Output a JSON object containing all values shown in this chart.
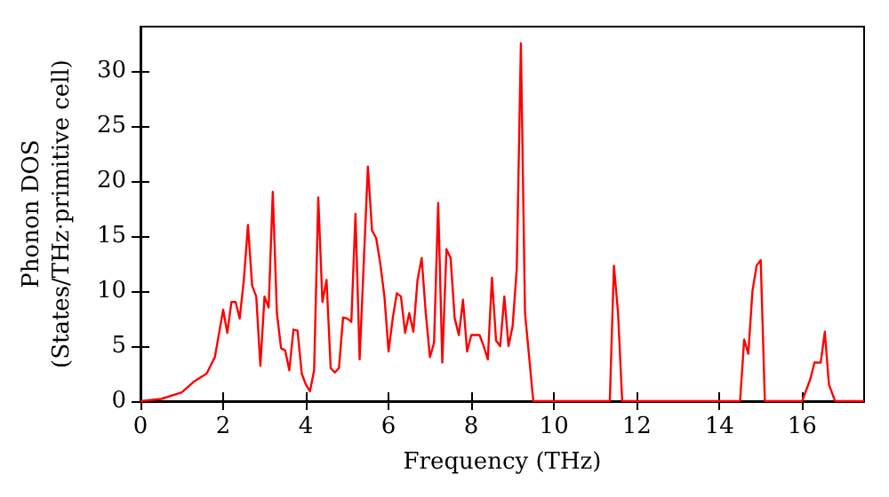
{
  "chart_data": {
    "type": "line",
    "xlabel": "Frequency (THz)",
    "ylabel": "Phonon DOS\n(States/THz·primitive cell)",
    "xlim": [
      0,
      17.5
    ],
    "xticks": [
      0,
      2,
      4,
      6,
      8,
      10,
      12,
      14,
      16
    ],
    "ylim": [
      0,
      34
    ],
    "yticks": [
      0,
      5,
      10,
      15,
      20,
      25,
      30
    ],
    "grid": false,
    "marker": "none",
    "line_style": "solid",
    "series": [
      {
        "color": "#ff0000",
        "x": [
          0,
          0.5,
          1,
          1.3,
          1.6,
          1.8,
          2.0,
          2.1,
          2.2,
          2.3,
          2.4,
          2.5,
          2.6,
          2.7,
          2.8,
          2.9,
          3.0,
          3.1,
          3.2,
          3.3,
          3.4,
          3.5,
          3.6,
          3.7,
          3.8,
          3.9,
          4.0,
          4.1,
          4.2,
          4.3,
          4.4,
          4.5,
          4.6,
          4.7,
          4.8,
          4.9,
          5.0,
          5.1,
          5.2,
          5.3,
          5.5,
          5.6,
          5.7,
          5.8,
          5.9,
          6.0,
          6.1,
          6.2,
          6.3,
          6.4,
          6.5,
          6.6,
          6.7,
          6.8,
          6.9,
          7.0,
          7.1,
          7.2,
          7.3,
          7.4,
          7.5,
          7.6,
          7.7,
          7.8,
          7.9,
          8.0,
          8.1,
          8.2,
          8.3,
          8.4,
          8.5,
          8.6,
          8.7,
          8.8,
          8.9,
          9.0,
          9.1,
          9.2,
          9.3,
          9.4,
          9.5,
          11.35,
          11.45,
          11.55,
          11.65,
          14.5,
          14.6,
          14.7,
          14.8,
          14.9,
          15.0,
          15.1,
          16.0,
          16.2,
          16.3,
          16.45,
          16.55,
          16.65,
          16.8,
          17.5
        ],
        "values": [
          0,
          0.2,
          0.8,
          1.8,
          2.5,
          4,
          8.3,
          6.2,
          9,
          9,
          7.5,
          11,
          16,
          10.5,
          9.5,
          3.2,
          9.5,
          8.5,
          19,
          8,
          4.8,
          4.6,
          2.8,
          6.5,
          6.4,
          2.5,
          1.5,
          0.9,
          2.8,
          18.5,
          9,
          11,
          3,
          2.6,
          3,
          7.6,
          7.5,
          7.2,
          17,
          3.8,
          21.3,
          15.5,
          14.8,
          12.5,
          9.5,
          4.5,
          7.5,
          9.8,
          9.5,
          6.2,
          8,
          6.3,
          11,
          13,
          8,
          4,
          5.3,
          18,
          3.5,
          13.8,
          13,
          7.5,
          6,
          9.2,
          4.5,
          6,
          6,
          6,
          5,
          3.8,
          11.2,
          5.5,
          5,
          9.5,
          5,
          6.8,
          12,
          32.5,
          8,
          4,
          0,
          0,
          12.3,
          8,
          0,
          0,
          5.6,
          4.3,
          10,
          12.3,
          12.8,
          0,
          0,
          2,
          3.5,
          3.5,
          6.3,
          1.5,
          0,
          0
        ]
      }
    ]
  }
}
